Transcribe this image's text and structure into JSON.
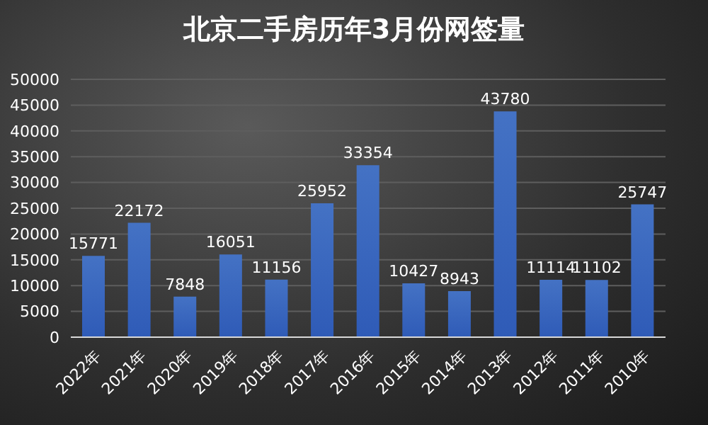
{
  "chart_data": {
    "type": "bar",
    "title": "北京二手房历年3月份网签量",
    "categories": [
      "2022年",
      "2021年",
      "2020年",
      "2019年",
      "2018年",
      "2017年",
      "2016年",
      "2015年",
      "2014年",
      "2013年",
      "2012年",
      "2011年",
      "2010年"
    ],
    "values": [
      15771,
      22172,
      7848,
      16051,
      11156,
      25952,
      33354,
      10427,
      8943,
      43780,
      11114,
      11102,
      25747
    ],
    "color": "#4472c4",
    "ylim": [
      0,
      50000
    ],
    "yticks": [
      0,
      5000,
      10000,
      15000,
      20000,
      25000,
      30000,
      35000,
      40000,
      45000,
      50000
    ],
    "grid": "y",
    "data_labels": true
  }
}
